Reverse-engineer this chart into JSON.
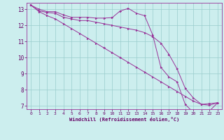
{
  "xlabel": "Windchill (Refroidissement éolien,°C)",
  "line_color": "#993399",
  "background_color": "#cceeee",
  "grid_color": "#99cccc",
  "xlim": [
    -0.5,
    23.5
  ],
  "ylim": [
    6.8,
    13.4
  ],
  "yticks": [
    7,
    8,
    9,
    10,
    11,
    12,
    13
  ],
  "xticks": [
    0,
    1,
    2,
    3,
    4,
    5,
    6,
    7,
    8,
    9,
    10,
    11,
    12,
    13,
    14,
    15,
    16,
    17,
    18,
    19,
    20,
    21,
    22,
    23
  ],
  "series": [
    {
      "x": [
        0,
        1,
        2,
        3,
        4,
        5,
        6,
        7,
        8,
        9,
        10,
        11,
        12,
        13,
        14,
        15,
        16,
        17,
        18,
        19,
        20,
        21,
        22,
        23
      ],
      "y": [
        13.25,
        13.0,
        12.85,
        12.85,
        12.65,
        12.5,
        12.5,
        12.5,
        12.45,
        12.45,
        12.48,
        12.9,
        13.05,
        12.75,
        12.6,
        11.4,
        9.4,
        8.8,
        8.5,
        7.1,
        6.6,
        6.6,
        6.7,
        7.2
      ]
    },
    {
      "x": [
        0,
        1,
        2,
        3,
        4,
        5,
        6,
        7,
        8,
        9,
        10,
        11,
        12,
        13,
        14,
        15,
        16,
        17,
        18,
        19,
        20,
        21,
        22,
        23
      ],
      "y": [
        13.25,
        12.9,
        12.8,
        12.75,
        12.5,
        12.4,
        12.3,
        12.3,
        12.2,
        12.1,
        12.0,
        11.9,
        11.8,
        11.7,
        11.55,
        11.3,
        10.9,
        10.2,
        9.3,
        8.1,
        7.5,
        7.1,
        7.15,
        7.2
      ]
    },
    {
      "x": [
        0,
        1,
        2,
        3,
        4,
        5,
        6,
        7,
        8,
        9,
        10,
        11,
        12,
        13,
        14,
        15,
        16,
        17,
        18,
        19,
        20,
        21,
        22,
        23
      ],
      "y": [
        13.25,
        12.85,
        12.6,
        12.4,
        12.1,
        11.8,
        11.5,
        11.2,
        10.9,
        10.6,
        10.3,
        10.0,
        9.7,
        9.4,
        9.1,
        8.8,
        8.5,
        8.2,
        7.9,
        7.6,
        7.3,
        7.1,
        7.05,
        7.2
      ]
    }
  ]
}
